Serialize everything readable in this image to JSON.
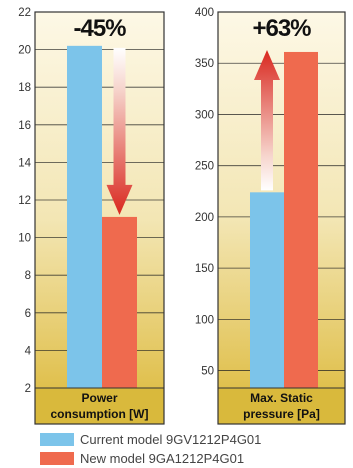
{
  "colors": {
    "current": "#7CC4EA",
    "new": "#EF6A4E",
    "arrow": "#D9281F",
    "panel_top": "#FDF8E6",
    "panel_bottom": "#E0C04D",
    "frame": "#333333"
  },
  "chart_data": [
    {
      "type": "bar",
      "categories": [
        "Power consumption [W]"
      ],
      "category_label_lines": [
        "Power",
        "consumption [W]"
      ],
      "series": [
        {
          "name": "Current model 9GV1212P4G01",
          "values": [
            20.2
          ]
        },
        {
          "name": "New model 9GA1212P4G01",
          "values": [
            11.1
          ]
        }
      ],
      "ylim": [
        2,
        22
      ],
      "yticks": [
        "2",
        "4",
        "6",
        "8",
        "10",
        "12",
        "14",
        "16",
        "18",
        "20",
        "22"
      ],
      "change_label": "-45%",
      "arrow_direction": "down",
      "grid": true
    },
    {
      "type": "bar",
      "categories": [
        "Max. Static pressure [Pa]"
      ],
      "category_label_lines": [
        "Max. Static",
        "pressure [Pa]"
      ],
      "series": [
        {
          "name": "Current model 9GV1212P4G01",
          "values": [
            224
          ]
        },
        {
          "name": "New model 9GA1212P4G01",
          "values": [
            361
          ]
        }
      ],
      "ylim": [
        33,
        400
      ],
      "yticks": [
        "50",
        "100",
        "150",
        "200",
        "250",
        "300",
        "350",
        "400"
      ],
      "change_label": "+63%",
      "arrow_direction": "up",
      "grid": true
    }
  ],
  "legend": [
    {
      "label": "Current model 9GV1212P4G01",
      "color_key": "current"
    },
    {
      "label": "New model 9GA1212P4G01",
      "color_key": "new"
    }
  ]
}
